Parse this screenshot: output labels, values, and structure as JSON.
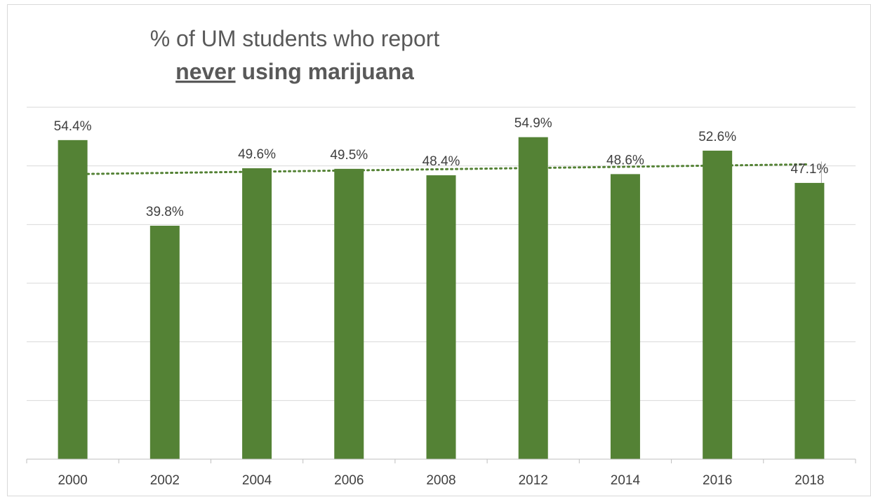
{
  "chart_data": {
    "type": "bar",
    "title_line1": "% of UM students who report",
    "title_emphasis": "never",
    "title_rest": " using marijuana",
    "categories": [
      "2000",
      "2002",
      "2004",
      "2006",
      "2008",
      "2012",
      "2014",
      "2016",
      "2018"
    ],
    "values": [
      54.4,
      39.8,
      49.6,
      49.5,
      48.4,
      54.9,
      48.6,
      52.6,
      47.1
    ],
    "value_labels": [
      "54.4%",
      "39.8%",
      "49.6%",
      "49.5%",
      "48.4%",
      "54.9%",
      "48.6%",
      "52.6%",
      "47.1%"
    ],
    "ylim": [
      0,
      60
    ],
    "y_gridlines": [
      10,
      20,
      30,
      40,
      50,
      60
    ],
    "y_tick_labels_shown": false,
    "legend": "none",
    "trendline": {
      "type": "linear",
      "style": "dotted"
    },
    "colors": {
      "bar": "#548235",
      "trendline": "#548235",
      "grid": "#d9d9d9",
      "axis": "#bfbfbf",
      "text": "#404040"
    }
  }
}
